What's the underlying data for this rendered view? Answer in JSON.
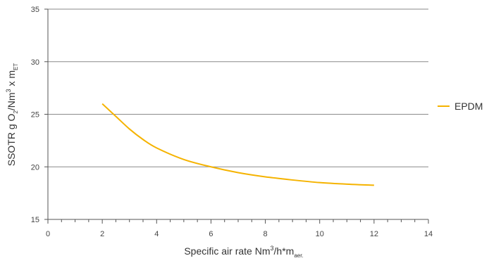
{
  "chart_data": {
    "type": "line",
    "x_range": [
      0,
      14
    ],
    "y_range": [
      15,
      35
    ],
    "x_ticks": [
      0,
      2,
      4,
      6,
      8,
      10,
      12,
      14
    ],
    "y_ticks": [
      15,
      20,
      25,
      30,
      35
    ],
    "x_minor_step": 0.5,
    "grid": "horizontal",
    "legend_position": "right",
    "xlabel": {
      "parts": [
        "Specific air rate Nm",
        "3",
        "/h*m",
        "aer."
      ]
    },
    "ylabel": {
      "parts": [
        "SSOTR g O",
        "2",
        "/Nm",
        "3",
        " x m",
        "ET"
      ]
    },
    "series": [
      {
        "name": "EPDM",
        "color": "#f5b300",
        "x": [
          2,
          2.5,
          3,
          3.5,
          4,
          5,
          6,
          7,
          8,
          9,
          10,
          11,
          12
        ],
        "y": [
          26.0,
          24.8,
          23.6,
          22.6,
          21.8,
          20.7,
          20.0,
          19.45,
          19.05,
          18.75,
          18.5,
          18.35,
          18.25
        ]
      }
    ]
  }
}
